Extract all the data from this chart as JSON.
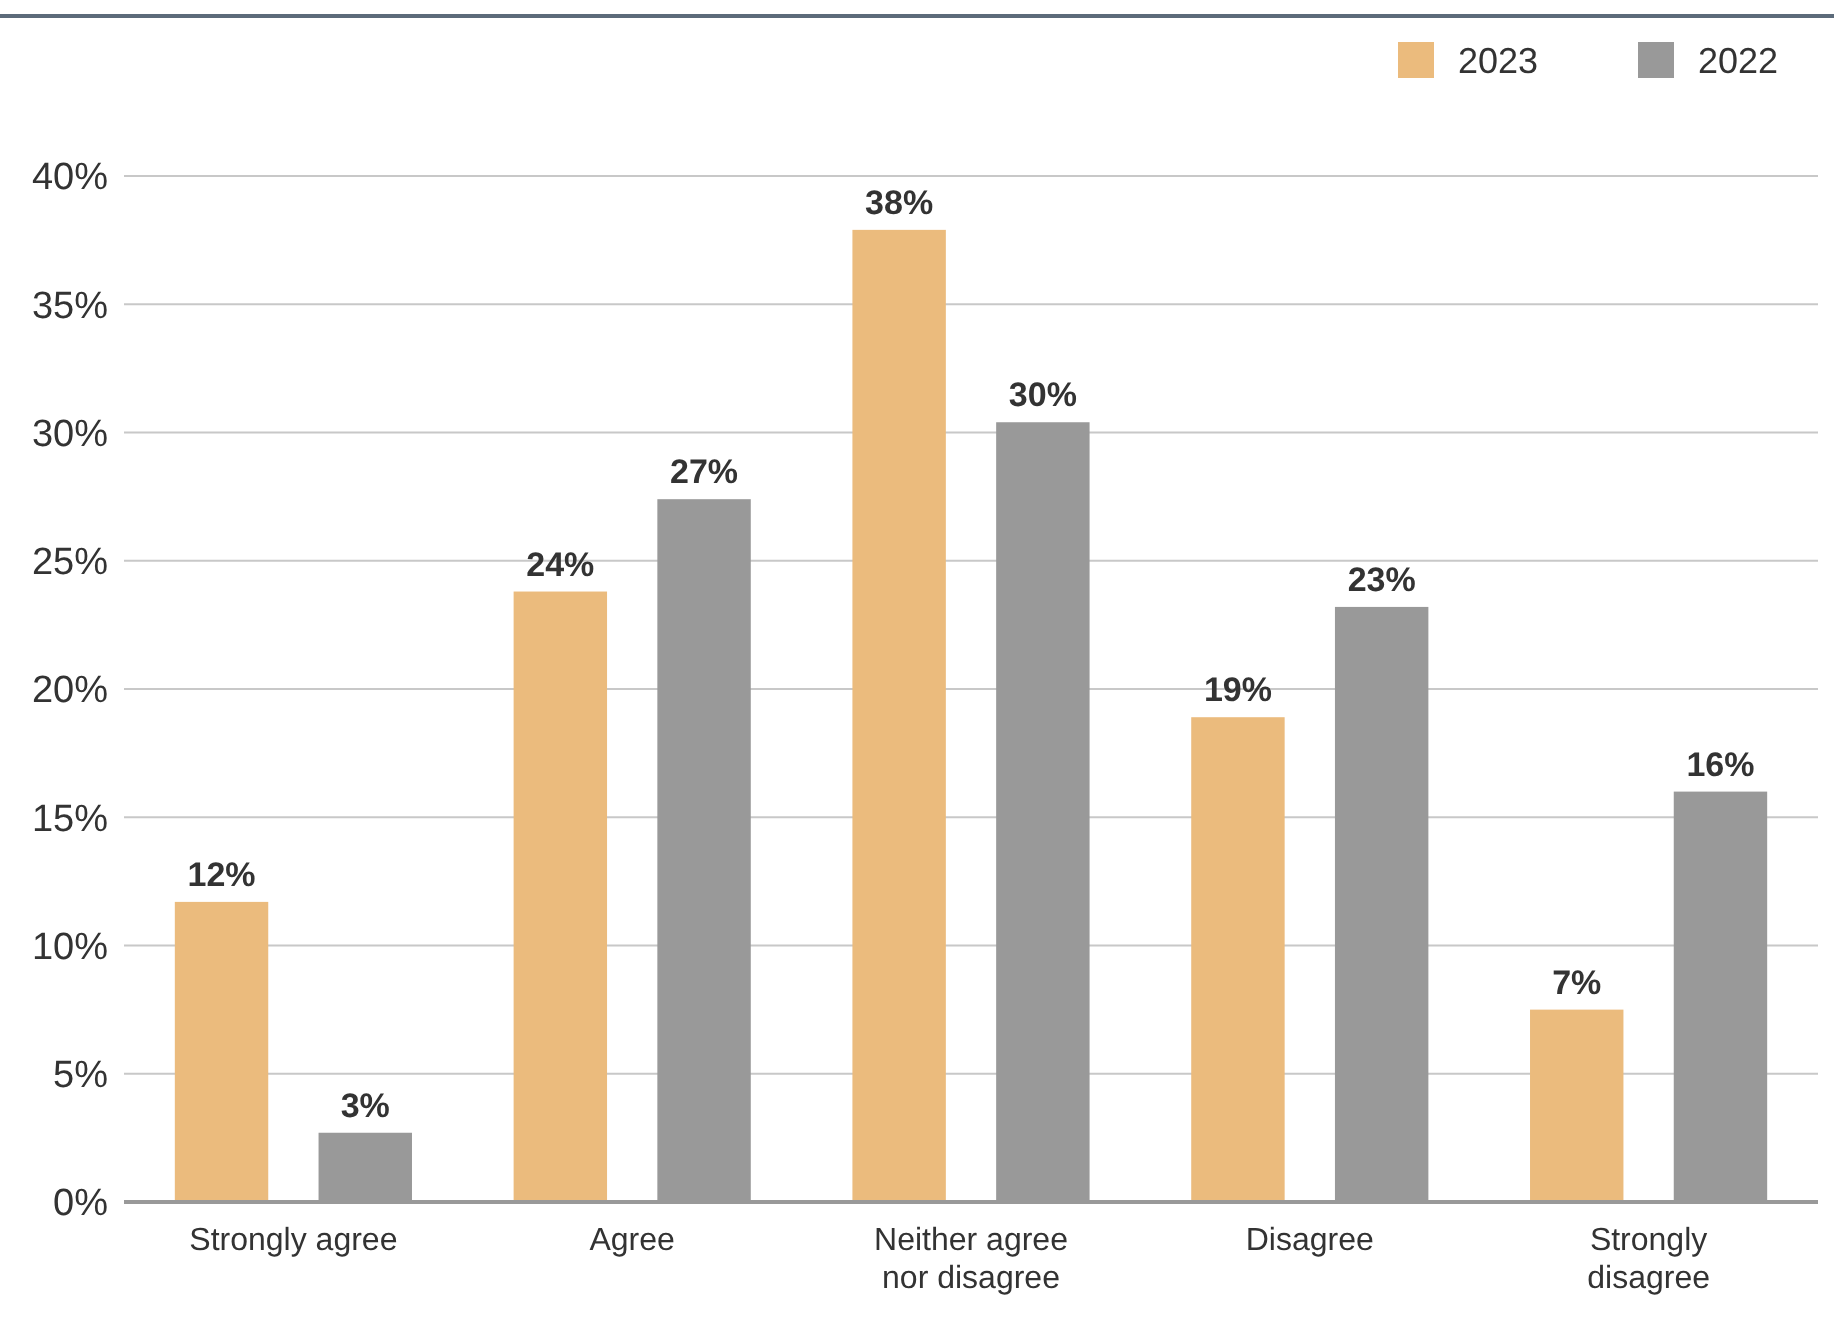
{
  "chart_data": {
    "type": "bar",
    "categories": [
      "Strongly agree",
      "Agree",
      "Neither agree nor disagree",
      "Disagree",
      "Strongly disagree"
    ],
    "series": [
      {
        "name": "2023",
        "color": "#ebbb7d",
        "values": [
          11.7,
          23.8,
          37.9,
          18.9,
          7.5
        ],
        "value_labels": [
          "12%",
          "24%",
          "38%",
          "19%",
          "7%"
        ]
      },
      {
        "name": "2022",
        "color": "#999999",
        "values": [
          2.7,
          27.4,
          30.4,
          23.2,
          16.0
        ],
        "value_labels": [
          "3%",
          "27%",
          "30%",
          "23%",
          "16%"
        ]
      }
    ],
    "ylim": [
      0,
      40
    ],
    "yticks": [
      {
        "value": 0,
        "label": "0%"
      },
      {
        "value": 5,
        "label": "5%"
      },
      {
        "value": 10,
        "label": "10%"
      },
      {
        "value": 15,
        "label": "15%"
      },
      {
        "value": 20,
        "label": "20%"
      },
      {
        "value": 25,
        "label": "25%"
      },
      {
        "value": 30,
        "label": "30%"
      },
      {
        "value": 35,
        "label": "35%"
      },
      {
        "value": 40,
        "label": "40%"
      }
    ],
    "grid": "y",
    "legend": "top right"
  }
}
